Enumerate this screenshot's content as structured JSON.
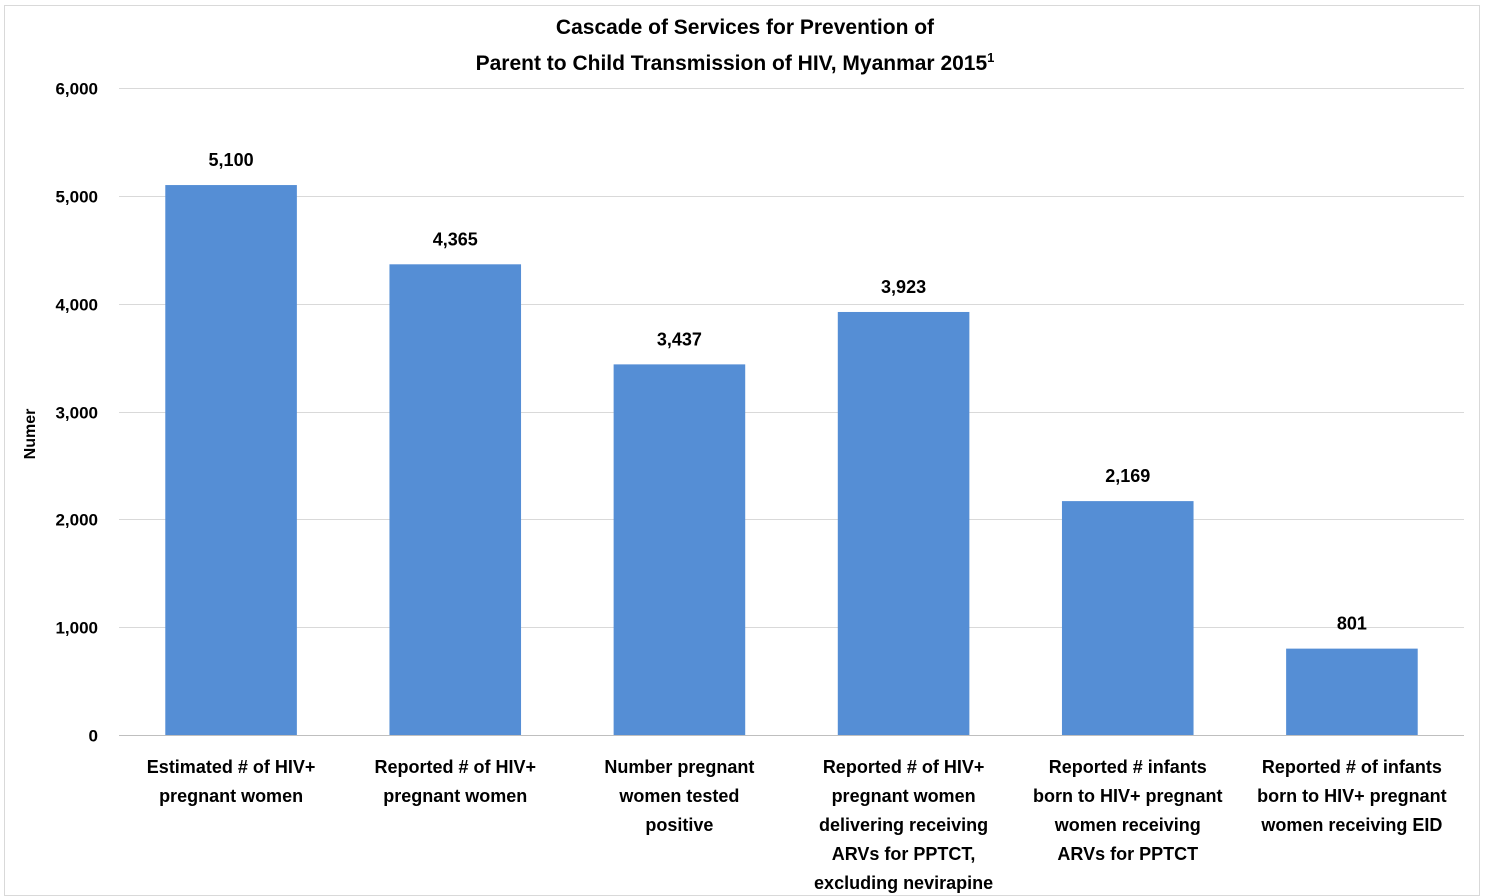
{
  "chart_data": {
    "type": "bar",
    "title": "Cascade of Services for Prevention of",
    "subtitle": "Parent to Child Transmission of HIV, Myanmar 2015",
    "title_superscript": "1",
    "xlabel": "",
    "ylabel": "Numer",
    "ylim": [
      0,
      6000
    ],
    "yticks": [
      "0",
      "1,000",
      "2,000",
      "3,000",
      "4,000",
      "5,000",
      "6,000"
    ],
    "categories": [
      [
        "Estimated # of HIV+",
        "pregnant women"
      ],
      [
        "Reported # of HIV+",
        "pregnant women"
      ],
      [
        "Number pregnant",
        "women tested",
        "positive"
      ],
      [
        "Reported # of HIV+",
        "pregnant women",
        "delivering receiving",
        "ARVs for PPTCT,",
        "excluding nevirapine"
      ],
      [
        "Reported # infants",
        "born to HIV+ pregnant",
        "women receiving",
        "ARVs for PPTCT"
      ],
      [
        "Reported # of infants",
        "born to HIV+ pregnant",
        "women receiving EID"
      ]
    ],
    "values": [
      5100,
      4365,
      3437,
      3923,
      2169,
      801
    ],
    "data_labels": [
      "5,100",
      "4,365",
      "3,437",
      "3,923",
      "2,169",
      "801"
    ],
    "grid": true,
    "legend": "none",
    "bar_color": "#558ed5",
    "grid_color": "#d9d9d9"
  }
}
